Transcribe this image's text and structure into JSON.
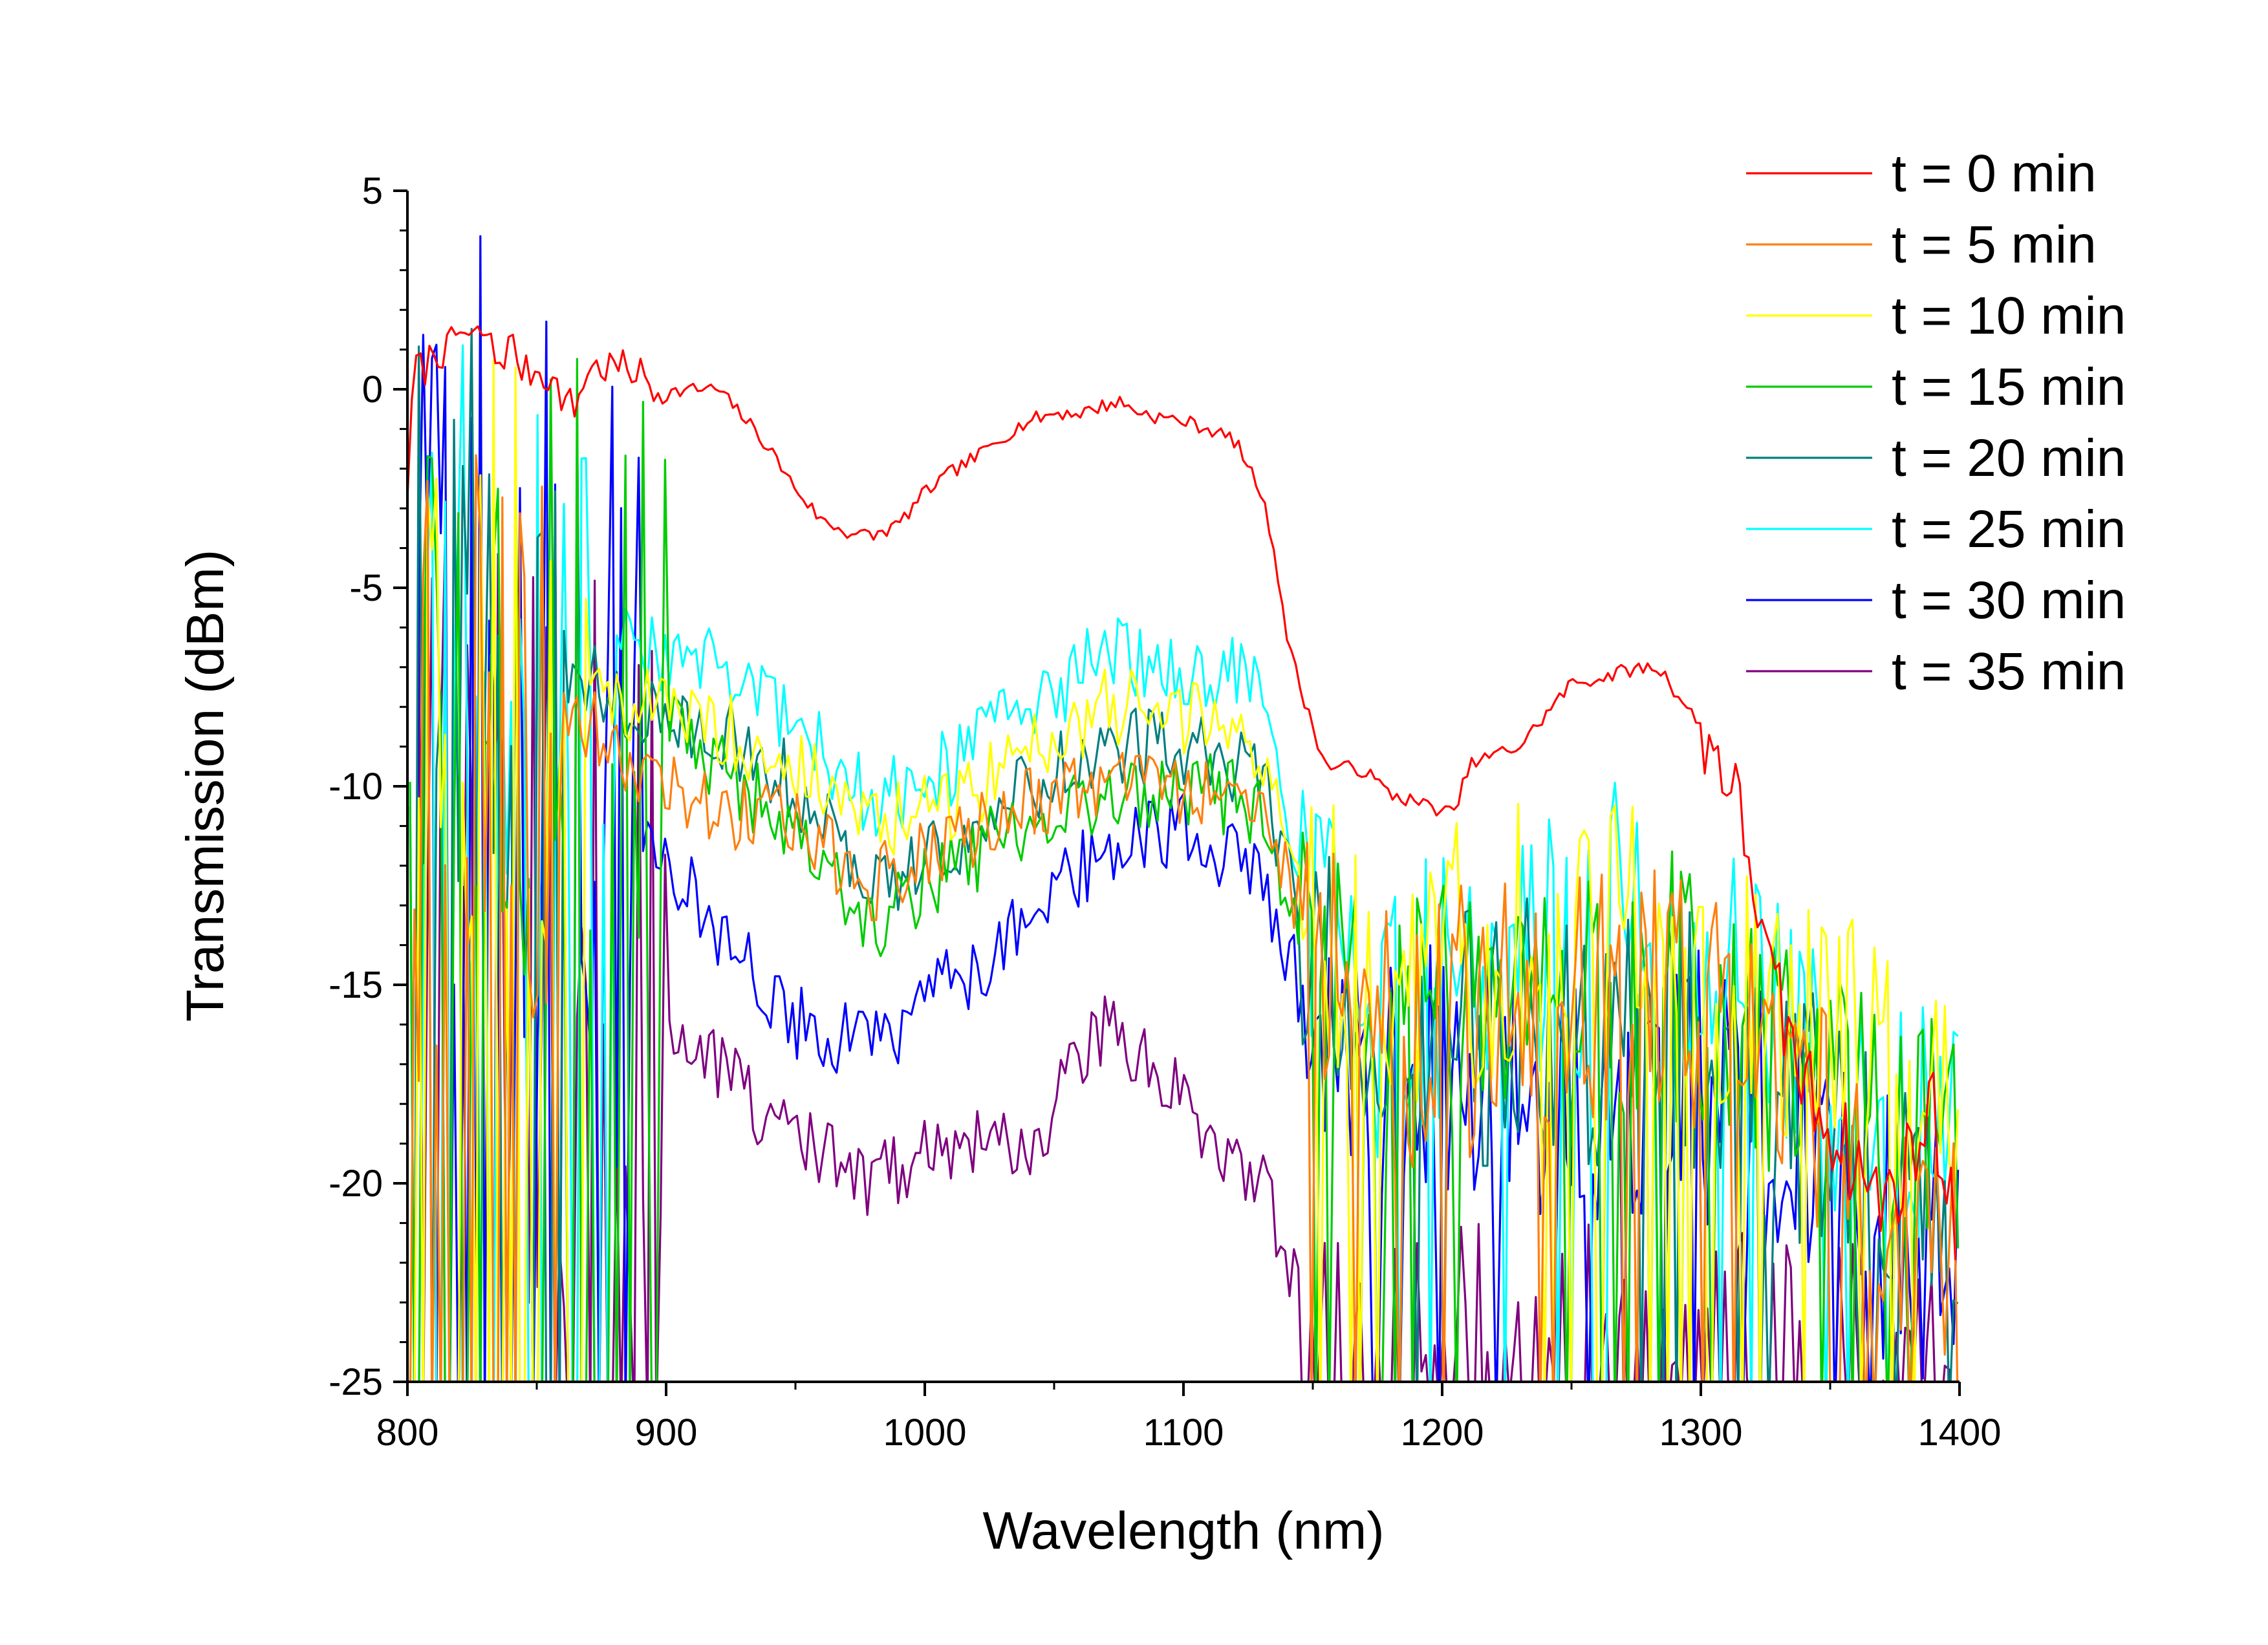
{
  "chart_data": {
    "type": "line",
    "xlabel": "Wavelength (nm)",
    "ylabel": "Transmission (dBm)",
    "xlim": [
      800,
      1400
    ],
    "ylim": [
      -25,
      5
    ],
    "xticks": [
      800,
      900,
      1000,
      1100,
      1200,
      1300,
      1400
    ],
    "yticks": [
      5,
      0,
      -5,
      -10,
      -15,
      -20,
      -25
    ],
    "x_tick_labels": [
      "800",
      "900",
      "1000",
      "1100",
      "1200",
      "1300",
      "1400"
    ],
    "y_tick_labels": [
      "5",
      "0",
      "-5",
      "-10",
      "-15",
      "-20",
      "-25"
    ],
    "grid": false,
    "legend_position": "top-right",
    "series": [
      {
        "name": "t = 0 min",
        "color": "#ff0000",
        "x": [
          800,
          803,
          806,
          810,
          815,
          820,
          825,
          830,
          835,
          840,
          845,
          850,
          855,
          860,
          865,
          870,
          875,
          880,
          885,
          890,
          895,
          900,
          910,
          920,
          930,
          940,
          950,
          960,
          970,
          980,
          990,
          1000,
          1010,
          1020,
          1030,
          1040,
          1050,
          1060,
          1070,
          1075,
          1080,
          1090,
          1100,
          1110,
          1120,
          1130,
          1135,
          1140,
          1145,
          1150,
          1155,
          1160,
          1170,
          1180,
          1190,
          1200,
          1205,
          1210,
          1220,
          1230,
          1240,
          1250,
          1260,
          1270,
          1280,
          1285,
          1290,
          1300,
          1310,
          1315,
          1320,
          1325,
          1330,
          1340,
          1350,
          1360,
          1370,
          1380,
          1390,
          1400
        ],
        "y": [
          -2.5,
          0.8,
          0.4,
          1.0,
          0.9,
          1.5,
          1.2,
          1.5,
          0.6,
          1.2,
          0.4,
          0.5,
          0.3,
          -0.2,
          -0.5,
          0.6,
          0.5,
          0.6,
          0.5,
          0.4,
          0.0,
          -0.1,
          0.0,
          0.0,
          -0.7,
          -1.5,
          -2.5,
          -3.3,
          -3.6,
          -3.7,
          -3.4,
          -2.6,
          -2.1,
          -1.7,
          -1.2,
          -0.8,
          -0.6,
          -0.6,
          -0.4,
          -0.3,
          -0.5,
          -0.7,
          -0.8,
          -1.0,
          -1.3,
          -2.6,
          -4.0,
          -6.2,
          -7.5,
          -8.5,
          -9.5,
          -9.5,
          -9.6,
          -10.2,
          -10.4,
          -10.6,
          -10.7,
          -9.5,
          -9.2,
          -9.0,
          -8.2,
          -7.4,
          -7.3,
          -7.1,
          -7.0,
          -7.1,
          -7.6,
          -8.5,
          -9.6,
          -10.8,
          -12.0,
          -14.5,
          -15.5,
          -17.5,
          -18.5,
          -19.5,
          -20.5,
          -19.5,
          -18.0,
          -22.0
        ]
      },
      {
        "name": "t = 5 min",
        "color": "#ff7f0e",
        "x": [],
        "y": []
      },
      {
        "name": "t = 10 min",
        "color": "#ffff00",
        "x": [],
        "y": []
      },
      {
        "name": "t = 15 min",
        "color": "#00cc00",
        "x": [],
        "y": []
      },
      {
        "name": "t = 20 min",
        "color": "#007f7f",
        "x": [],
        "y": []
      },
      {
        "name": "t = 25 min",
        "color": "#00ffff",
        "x": [],
        "y": []
      },
      {
        "name": "t = 30 min",
        "color": "#0000ff",
        "x": [],
        "y": []
      },
      {
        "name": "t = 35 min",
        "color": "#800080",
        "x": [],
        "y": []
      }
    ],
    "envelopes": {
      "t = 5 min": {
        "x": [
          800,
          830,
          860,
          890,
          920,
          950,
          980,
          1010,
          1040,
          1070,
          1100,
          1130,
          1150,
          1175,
          1200,
          1250,
          1300,
          1340,
          1370,
          1400
        ],
        "y": [
          -9.0,
          -7.5,
          -8.0,
          -9.5,
          -10.5,
          -11.0,
          -12.5,
          -11.5,
          -10.5,
          -10.0,
          -10.0,
          -11.0,
          -14.0,
          -16.5,
          -16.0,
          -15.5,
          -15.5,
          -18.0,
          -20.0,
          -22.0
        ],
        "noise": 9.0,
        "noise_end_nm": 860
      },
      "t = 10 min": {
        "x": [
          800,
          830,
          860,
          890,
          920,
          950,
          980,
          1010,
          1040,
          1070,
          1100,
          1130,
          1150,
          1175,
          1200,
          1250,
          1270,
          1300,
          1340,
          1370,
          1400
        ],
        "y": [
          -8.0,
          -6.5,
          -7.0,
          -8.0,
          -8.5,
          -9.5,
          -11.0,
          -10.5,
          -9.0,
          -8.0,
          -8.2,
          -9.0,
          -13.0,
          -15.0,
          -14.5,
          -13.5,
          -12.0,
          -14.5,
          -16.5,
          -17.0,
          -18.5
        ],
        "noise": 8.0,
        "noise_end_nm": 870
      },
      "t = 15 min": {
        "x": [
          800,
          830,
          860,
          890,
          920,
          950,
          980,
          1010,
          1040,
          1070,
          1100,
          1130,
          1150,
          1175,
          1200,
          1250,
          1300,
          1340,
          1370,
          1400
        ],
        "y": [
          -7.0,
          -5.5,
          -6.5,
          -7.5,
          -9.5,
          -11.0,
          -13.5,
          -12.0,
          -11.0,
          -10.5,
          -10.0,
          -10.5,
          -14.5,
          -16.5,
          -16.0,
          -15.5,
          -15.0,
          -17.5,
          -18.0,
          -19.0
        ],
        "noise": 9.0,
        "noise_end_nm": 900
      },
      "t = 20 min": {
        "x": [
          800,
          830,
          860,
          890,
          920,
          950,
          980,
          1010,
          1040,
          1070,
          1100,
          1130,
          1150,
          1175,
          1200,
          1250,
          1300,
          1340,
          1370,
          1400
        ],
        "y": [
          -8.0,
          -6.0,
          -7.0,
          -8.0,
          -8.5,
          -10.0,
          -12.5,
          -11.5,
          -10.0,
          -9.0,
          -9.0,
          -9.8,
          -14.0,
          -16.5,
          -16.5,
          -16.0,
          -16.5,
          -18.5,
          -20.0,
          -21.0
        ],
        "noise": 9.0,
        "noise_end_nm": 860
      },
      "t = 25 min": {
        "x": [
          800,
          830,
          860,
          890,
          920,
          950,
          980,
          1010,
          1040,
          1070,
          1100,
          1130,
          1150,
          1175,
          1200,
          1250,
          1270,
          1300,
          1340,
          1370,
          1400
        ],
        "y": [
          -8.0,
          -6.0,
          -6.5,
          -6.5,
          -7.0,
          -8.5,
          -10.5,
          -9.5,
          -8.0,
          -6.7,
          -7.0,
          -7.3,
          -13.5,
          -16.0,
          -15.0,
          -14.0,
          -13.0,
          -14.5,
          -17.0,
          -18.5,
          -19.0
        ],
        "noise": 8.0,
        "noise_end_nm": 880
      },
      "t = 30 min": {
        "x": [
          800,
          830,
          860,
          890,
          920,
          950,
          980,
          1010,
          1040,
          1070,
          1100,
          1130,
          1150,
          1175,
          1200,
          1250,
          1300,
          1340,
          1370,
          1400
        ],
        "y": [
          -8.0,
          -6.0,
          -8.0,
          -11.0,
          -13.5,
          -16.0,
          -16.5,
          -15.0,
          -13.5,
          -11.5,
          -11.0,
          -12.5,
          -16.0,
          -17.5,
          -17.0,
          -17.5,
          -17.5,
          -19.5,
          -21.0,
          -22.0
        ],
        "noise": 10.0,
        "noise_end_nm": 890
      },
      "t = 35 min": {
        "x": [
          800,
          830,
          860,
          890,
          920,
          950,
          980,
          1010,
          1040,
          1070,
          1100,
          1130,
          1150,
          1175,
          1200,
          1250,
          1300,
          1340,
          1370,
          1400
        ],
        "y": [
          -16.0,
          -15.0,
          -17.0,
          -16.5,
          -17.0,
          -19.0,
          -20.0,
          -19.0,
          -19.0,
          -16.0,
          -18.0,
          -20.0,
          -24.0,
          -24.5,
          -24.5,
          -24.5,
          -24.5,
          -24.8,
          -25.0,
          -25.0
        ],
        "noise": 12.0,
        "noise_end_nm": 900
      }
    }
  }
}
